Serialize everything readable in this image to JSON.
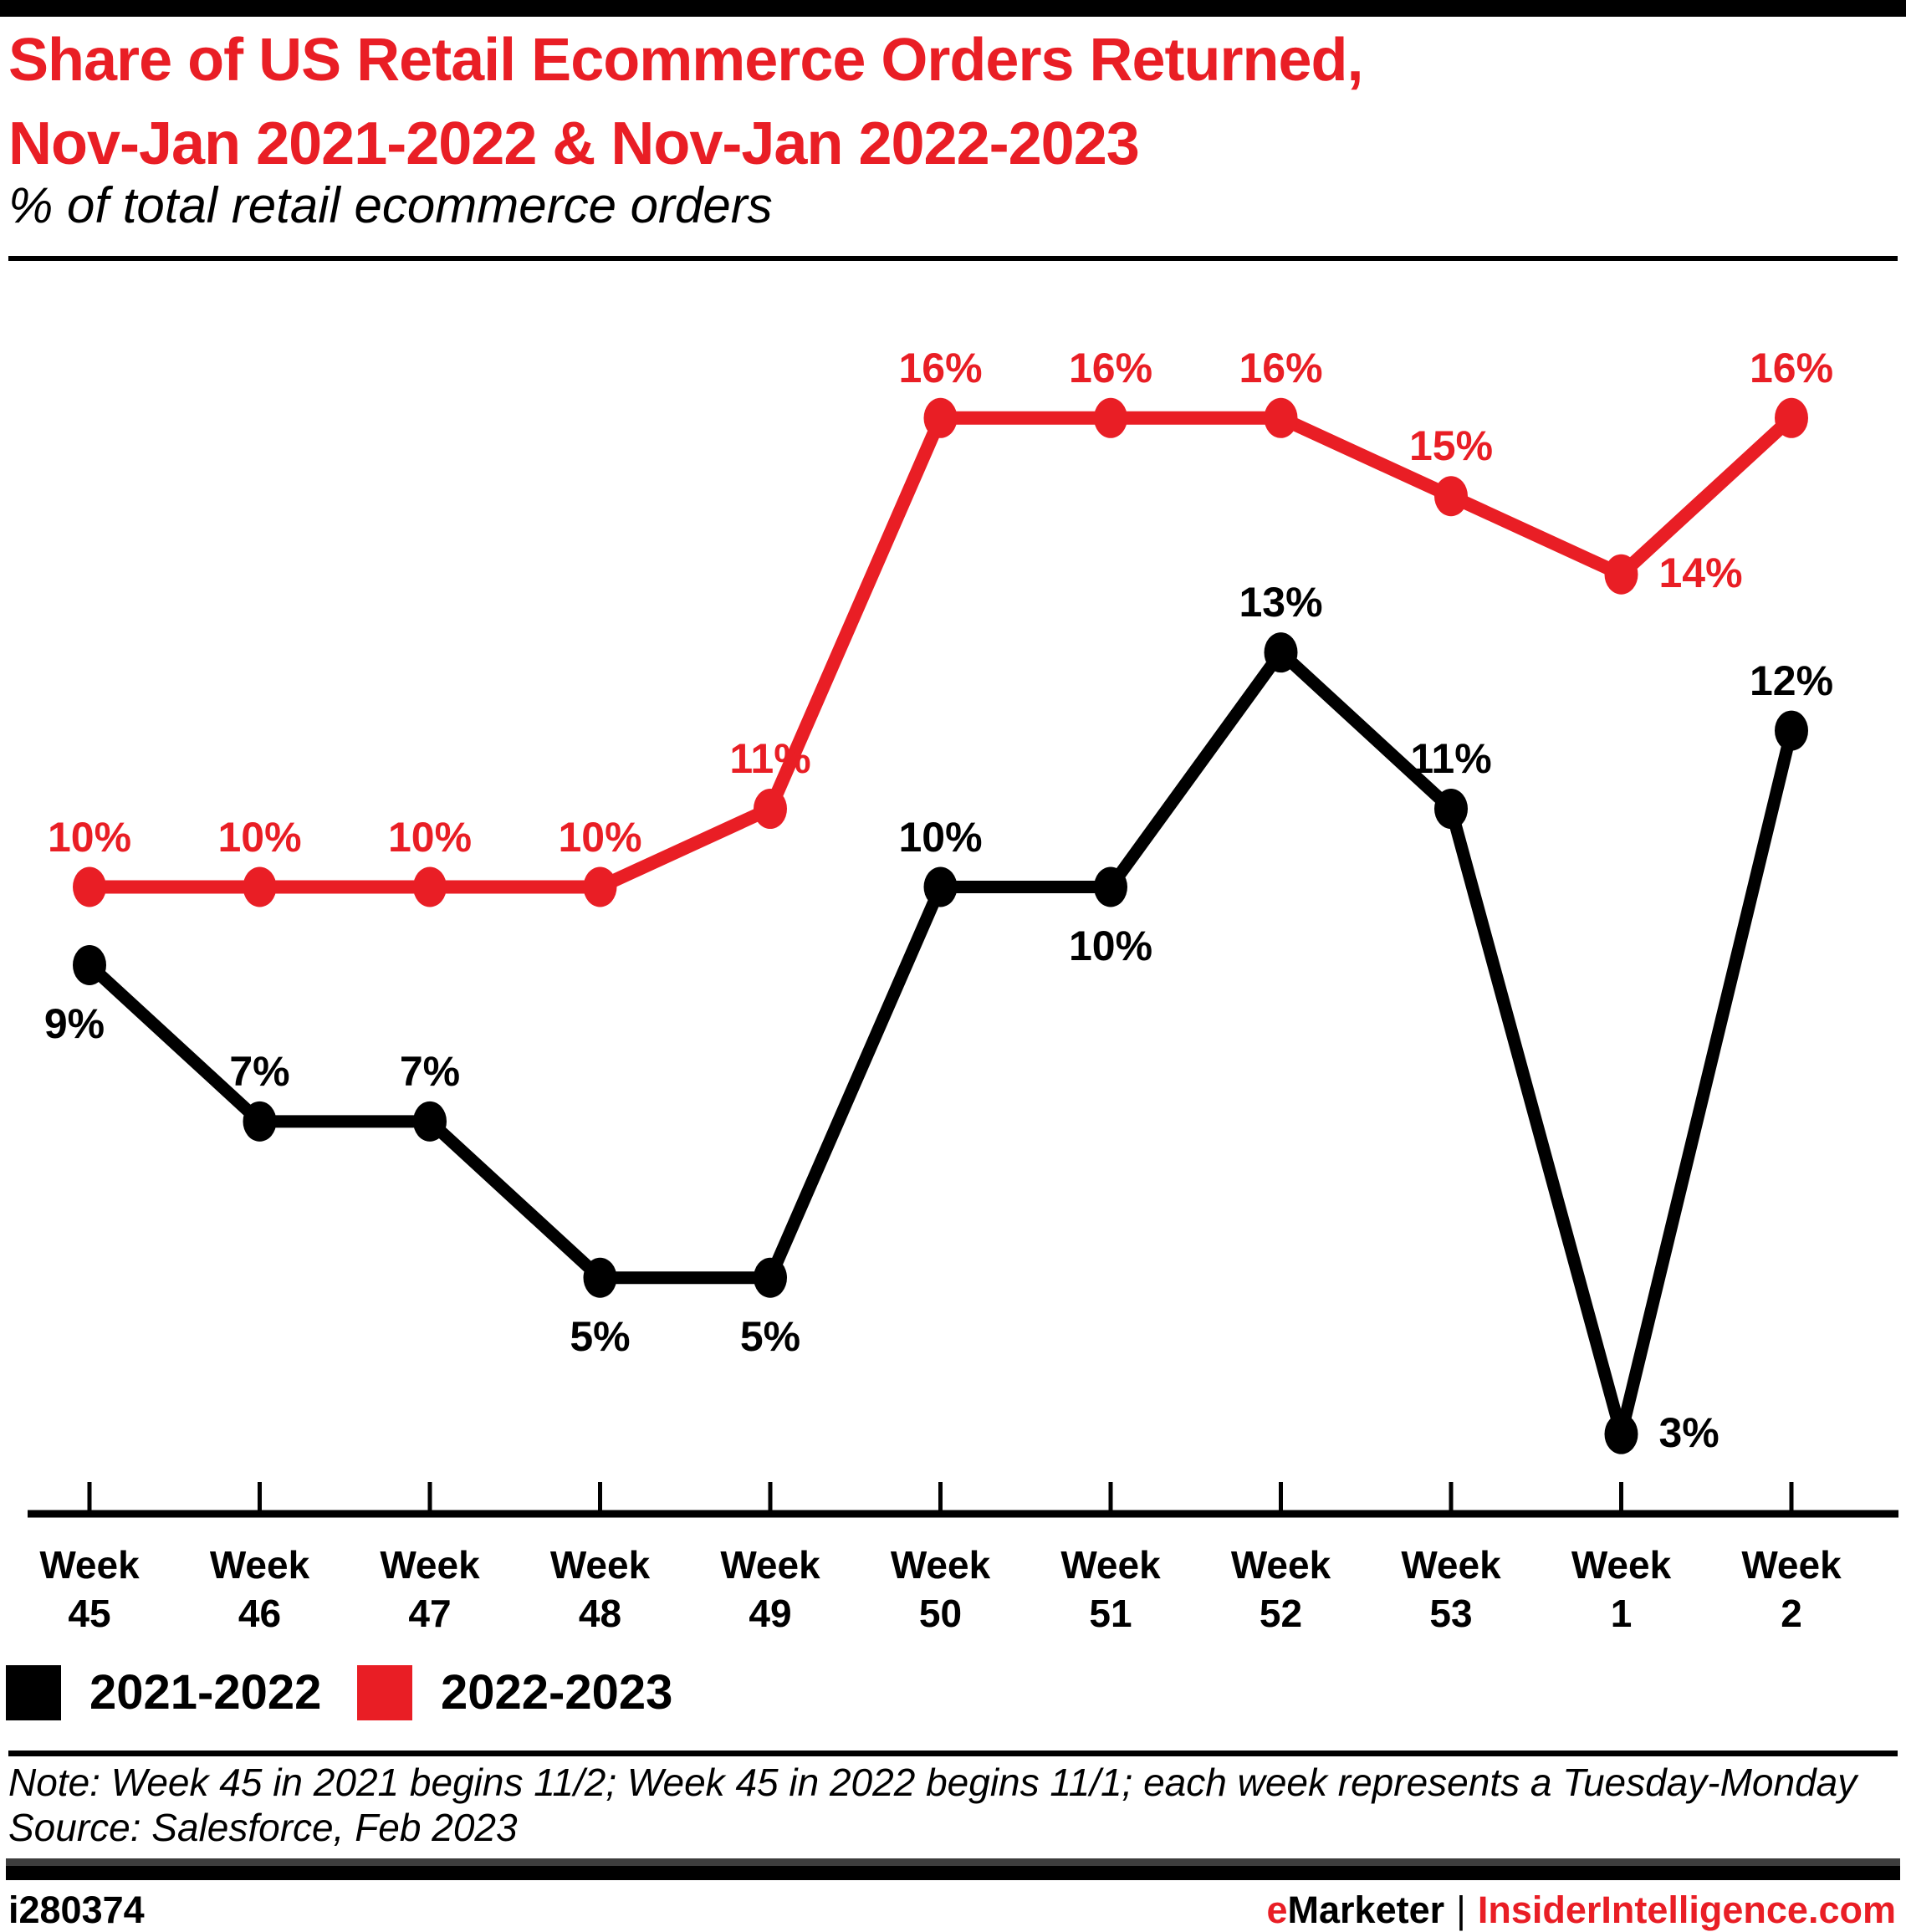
{
  "page": {
    "title_line1": "Share of US Retail Ecommerce Orders Returned,",
    "title_line2": "Nov-Jan 2021-2022 & Nov-Jan 2022-2023",
    "subtitle": "% of total retail ecommerce orders",
    "note": "Note: Week 45 in 2021 begins 11/2; Week 45 in 2022 begins 11/1; each week represents a Tuesday-Monday",
    "source": "Source: Salesforce, Feb 2023",
    "footer": {
      "chart_id": "i280374",
      "brand_e": "e",
      "brand_rest": "Marketer",
      "separator": "|",
      "site": "InsiderIntelligence.com"
    }
  },
  "colors": {
    "accent_red": "#E91E25",
    "series_black": "#000000",
    "top_bar": "#000000",
    "footer_gray": "#3d3d3d"
  },
  "chart_data": {
    "type": "line",
    "title": "Share of US Retail Ecommerce Orders Returned, Nov-Jan 2021-2022 & Nov-Jan 2022-2023",
    "subtitle": "% of total retail ecommerce orders",
    "x_axis": {
      "prefix": "Week",
      "categories": [
        "45",
        "46",
        "47",
        "48",
        "49",
        "50",
        "51",
        "52",
        "53",
        "1",
        "2"
      ]
    },
    "ylim": [
      2,
      18
    ],
    "grid": false,
    "legend_position": "bottom-left",
    "series": [
      {
        "name": "2021-2022",
        "color": "#000000",
        "values": [
          9,
          7,
          7,
          5,
          5,
          10,
          10,
          13,
          11,
          3,
          12
        ],
        "labels": [
          "9%",
          "7%",
          "7%",
          "5%",
          "5%",
          "10%",
          "10%",
          "13%",
          "11%",
          "3%",
          "12%"
        ]
      },
      {
        "name": "2022-2023",
        "color": "#E91E25",
        "values": [
          10,
          10,
          10,
          10,
          11,
          16,
          16,
          16,
          15,
          14,
          16
        ],
        "labels": [
          "10%",
          "10%",
          "10%",
          "10%",
          "11%",
          "16%",
          "16%",
          "16%",
          "15%",
          "14%",
          "16%"
        ]
      }
    ]
  }
}
